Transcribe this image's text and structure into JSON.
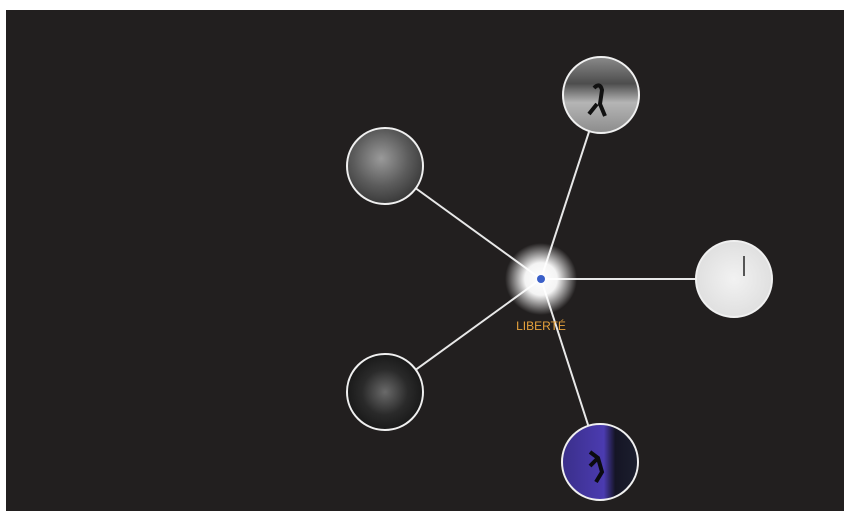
{
  "center": {
    "label": "LIBERTÉ"
  }
}
